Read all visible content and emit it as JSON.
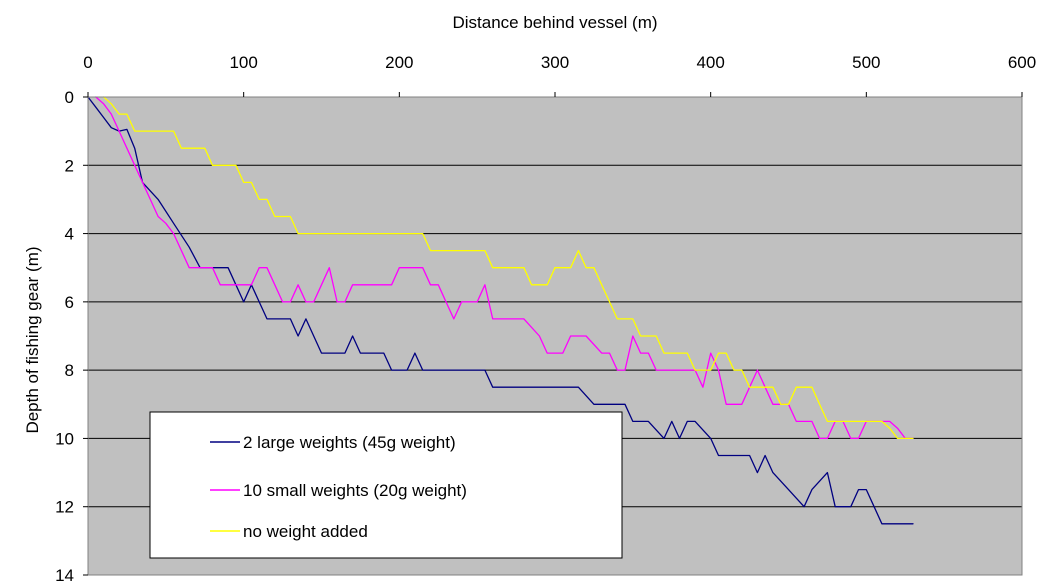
{
  "chart_data": {
    "type": "line",
    "title": "",
    "xlabel": "Distance behind vessel (m)",
    "ylabel": "Depth of fishing gear (m)",
    "x_axis_position": "top",
    "y_axis_reversed": true,
    "xlim": [
      0,
      600
    ],
    "ylim": [
      0,
      14
    ],
    "x_ticks": [
      "0",
      "100",
      "200",
      "300",
      "400",
      "500",
      "600"
    ],
    "y_ticks": [
      "0",
      "2",
      "4",
      "6",
      "8",
      "10",
      "12",
      "14"
    ],
    "grid": "horizontal",
    "plot_background": "#c0c0c0",
    "legend_position": "bottom-left",
    "series": [
      {
        "name": "2 large weights (45g weight)",
        "color": "#000080",
        "points": [
          [
            0,
            0
          ],
          [
            5,
            0.3
          ],
          [
            10,
            0.6
          ],
          [
            15,
            0.9
          ],
          [
            20,
            1.0
          ],
          [
            25,
            0.95
          ],
          [
            30,
            1.5
          ],
          [
            35,
            2.5
          ],
          [
            45,
            3.0
          ],
          [
            55,
            3.7
          ],
          [
            65,
            4.4
          ],
          [
            72,
            5.0
          ],
          [
            80,
            5.0
          ],
          [
            90,
            5.0
          ],
          [
            95,
            5.5
          ],
          [
            100,
            6.0
          ],
          [
            105,
            5.5
          ],
          [
            110,
            6.0
          ],
          [
            115,
            6.5
          ],
          [
            125,
            6.5
          ],
          [
            130,
            6.5
          ],
          [
            135,
            7.0
          ],
          [
            140,
            6.5
          ],
          [
            145,
            7.0
          ],
          [
            150,
            7.5
          ],
          [
            160,
            7.5
          ],
          [
            165,
            7.5
          ],
          [
            170,
            7.0
          ],
          [
            175,
            7.5
          ],
          [
            190,
            7.5
          ],
          [
            195,
            8.0
          ],
          [
            205,
            8.0
          ],
          [
            210,
            7.5
          ],
          [
            215,
            8.0
          ],
          [
            250,
            8.0
          ],
          [
            255,
            8.0
          ],
          [
            260,
            8.5
          ],
          [
            310,
            8.5
          ],
          [
            315,
            8.5
          ],
          [
            325,
            9.0
          ],
          [
            345,
            9.0
          ],
          [
            350,
            9.5
          ],
          [
            360,
            9.5
          ],
          [
            370,
            10.0
          ],
          [
            375,
            9.5
          ],
          [
            380,
            10.0
          ],
          [
            385,
            9.5
          ],
          [
            390,
            9.5
          ],
          [
            400,
            10.0
          ],
          [
            405,
            10.5
          ],
          [
            425,
            10.5
          ],
          [
            430,
            11.0
          ],
          [
            435,
            10.5
          ],
          [
            440,
            11.0
          ],
          [
            450,
            11.5
          ],
          [
            460,
            12.0
          ],
          [
            465,
            11.5
          ],
          [
            475,
            11.0
          ],
          [
            480,
            12.0
          ],
          [
            485,
            12.0
          ],
          [
            490,
            12.0
          ],
          [
            495,
            11.5
          ],
          [
            500,
            11.5
          ],
          [
            505,
            12.0
          ],
          [
            510,
            12.5
          ],
          [
            520,
            12.5
          ],
          [
            530,
            12.5
          ]
        ]
      },
      {
        "name": "10 small weights (20g weight)",
        "color": "#ff00ff",
        "points": [
          [
            5,
            0
          ],
          [
            10,
            0.2
          ],
          [
            15,
            0.5
          ],
          [
            20,
            1.0
          ],
          [
            25,
            1.5
          ],
          [
            30,
            2.0
          ],
          [
            35,
            2.5
          ],
          [
            40,
            3.0
          ],
          [
            45,
            3.5
          ],
          [
            50,
            3.7
          ],
          [
            55,
            4.0
          ],
          [
            60,
            4.5
          ],
          [
            65,
            5.0
          ],
          [
            75,
            5.0
          ],
          [
            80,
            5.0
          ],
          [
            85,
            5.5
          ],
          [
            95,
            5.5
          ],
          [
            100,
            5.5
          ],
          [
            105,
            5.5
          ],
          [
            110,
            5.0
          ],
          [
            115,
            5.0
          ],
          [
            120,
            5.5
          ],
          [
            125,
            6.0
          ],
          [
            130,
            6.0
          ],
          [
            135,
            5.5
          ],
          [
            140,
            6.0
          ],
          [
            145,
            6.0
          ],
          [
            150,
            5.5
          ],
          [
            155,
            5.0
          ],
          [
            160,
            6.0
          ],
          [
            165,
            6.0
          ],
          [
            170,
            5.5
          ],
          [
            180,
            5.5
          ],
          [
            185,
            5.5
          ],
          [
            190,
            5.5
          ],
          [
            195,
            5.5
          ],
          [
            200,
            5.0
          ],
          [
            210,
            5.0
          ],
          [
            215,
            5.0
          ],
          [
            220,
            5.5
          ],
          [
            225,
            5.5
          ],
          [
            230,
            6.0
          ],
          [
            235,
            6.5
          ],
          [
            240,
            6.0
          ],
          [
            245,
            6.0
          ],
          [
            250,
            6.0
          ],
          [
            255,
            5.5
          ],
          [
            260,
            6.5
          ],
          [
            275,
            6.5
          ],
          [
            280,
            6.5
          ],
          [
            290,
            7.0
          ],
          [
            295,
            7.5
          ],
          [
            300,
            7.5
          ],
          [
            305,
            7.5
          ],
          [
            310,
            7.0
          ],
          [
            320,
            7.0
          ],
          [
            330,
            7.5
          ],
          [
            335,
            7.5
          ],
          [
            340,
            8.0
          ],
          [
            345,
            8.0
          ],
          [
            350,
            7.0
          ],
          [
            355,
            7.5
          ],
          [
            360,
            7.5
          ],
          [
            365,
            8.0
          ],
          [
            375,
            8.0
          ],
          [
            380,
            8.0
          ],
          [
            385,
            8.0
          ],
          [
            390,
            8.0
          ],
          [
            395,
            8.5
          ],
          [
            400,
            7.5
          ],
          [
            405,
            8.0
          ],
          [
            410,
            9.0
          ],
          [
            420,
            9.0
          ],
          [
            425,
            8.5
          ],
          [
            430,
            8.0
          ],
          [
            440,
            9.0
          ],
          [
            445,
            9.0
          ],
          [
            450,
            9.0
          ],
          [
            455,
            9.5
          ],
          [
            460,
            9.5
          ],
          [
            465,
            9.5
          ],
          [
            470,
            10.0
          ],
          [
            475,
            10.0
          ],
          [
            480,
            9.5
          ],
          [
            485,
            9.5
          ],
          [
            490,
            10.0
          ],
          [
            495,
            10.0
          ],
          [
            500,
            9.5
          ],
          [
            505,
            9.5
          ],
          [
            510,
            9.5
          ],
          [
            515,
            9.5
          ],
          [
            520,
            9.7
          ],
          [
            525,
            10.0
          ],
          [
            530,
            10.0
          ]
        ]
      },
      {
        "name": "no weight added",
        "color": "#ffff00",
        "points": [
          [
            10,
            0
          ],
          [
            15,
            0.2
          ],
          [
            20,
            0.5
          ],
          [
            25,
            0.5
          ],
          [
            30,
            1.0
          ],
          [
            35,
            1.0
          ],
          [
            40,
            1.0
          ],
          [
            45,
            1.0
          ],
          [
            50,
            1.0
          ],
          [
            55,
            1.0
          ],
          [
            60,
            1.5
          ],
          [
            65,
            1.5
          ],
          [
            70,
            1.5
          ],
          [
            75,
            1.5
          ],
          [
            80,
            2.0
          ],
          [
            90,
            2.0
          ],
          [
            95,
            2.0
          ],
          [
            100,
            2.5
          ],
          [
            105,
            2.5
          ],
          [
            110,
            3.0
          ],
          [
            115,
            3.0
          ],
          [
            120,
            3.5
          ],
          [
            125,
            3.5
          ],
          [
            130,
            3.5
          ],
          [
            135,
            4.0
          ],
          [
            140,
            4.0
          ],
          [
            160,
            4.0
          ],
          [
            170,
            4.0
          ],
          [
            200,
            4.0
          ],
          [
            215,
            4.0
          ],
          [
            220,
            4.5
          ],
          [
            250,
            4.5
          ],
          [
            255,
            4.5
          ],
          [
            260,
            5.0
          ],
          [
            270,
            5.0
          ],
          [
            280,
            5.0
          ],
          [
            285,
            5.5
          ],
          [
            290,
            5.5
          ],
          [
            295,
            5.5
          ],
          [
            300,
            5.0
          ],
          [
            305,
            5.0
          ],
          [
            310,
            5.0
          ],
          [
            315,
            4.5
          ],
          [
            320,
            5.0
          ],
          [
            325,
            5.0
          ],
          [
            330,
            5.5
          ],
          [
            335,
            6.0
          ],
          [
            340,
            6.5
          ],
          [
            345,
            6.5
          ],
          [
            350,
            6.5
          ],
          [
            355,
            7.0
          ],
          [
            360,
            7.0
          ],
          [
            365,
            7.0
          ],
          [
            370,
            7.5
          ],
          [
            375,
            7.5
          ],
          [
            380,
            7.5
          ],
          [
            385,
            7.5
          ],
          [
            390,
            8.0
          ],
          [
            395,
            8.0
          ],
          [
            400,
            8.0
          ],
          [
            405,
            7.5
          ],
          [
            410,
            7.5
          ],
          [
            415,
            8.0
          ],
          [
            420,
            8.0
          ],
          [
            425,
            8.5
          ],
          [
            430,
            8.5
          ],
          [
            435,
            8.5
          ],
          [
            440,
            8.5
          ],
          [
            445,
            9.0
          ],
          [
            450,
            9.0
          ],
          [
            455,
            8.5
          ],
          [
            460,
            8.5
          ],
          [
            465,
            8.5
          ],
          [
            470,
            9.0
          ],
          [
            475,
            9.5
          ],
          [
            480,
            9.5
          ],
          [
            485,
            9.5
          ],
          [
            490,
            9.5
          ],
          [
            495,
            9.5
          ],
          [
            500,
            9.5
          ],
          [
            505,
            9.5
          ],
          [
            510,
            9.5
          ],
          [
            515,
            9.7
          ],
          [
            520,
            10.0
          ],
          [
            530,
            10.0
          ]
        ]
      }
    ]
  }
}
